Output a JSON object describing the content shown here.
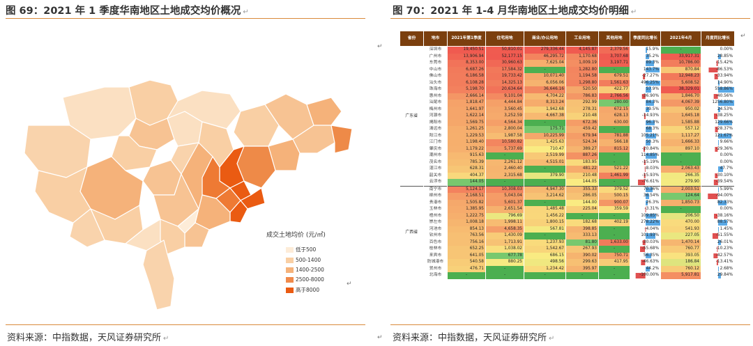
{
  "left": {
    "title": "图 69：2021 年 1 季度华南地区土地成交均价概况",
    "source": "资料来源：中指数据，天风证券研究所",
    "legend_title": "成交土地均价 (元/㎡)",
    "legend": [
      {
        "label": "低于500",
        "color": "#fdecd8"
      },
      {
        "label": "500-1400",
        "color": "#f9cfa4"
      },
      {
        "label": "1400-2500",
        "color": "#f5b27a"
      },
      {
        "label": "2500-8000",
        "color": "#f08a4b"
      },
      {
        "label": "高于8000",
        "color": "#ea5b12"
      }
    ]
  },
  "right": {
    "title": "图 70：2021 年 1-4 月华南地区土地成交均价明细",
    "source": "资料来源：中指数据，天风证券研究所",
    "headers": [
      "省份",
      "地市",
      "2021年第1季度",
      "住宅用地",
      "商业/办公用地",
      "工业用地",
      "其他用地",
      "季度同比增长",
      "2021年4月",
      "月度同比增长"
    ],
    "groups": [
      {
        "province": "广东省",
        "rows": [
          [
            "深圳市",
            "19,450.51",
            "50,810.01",
            "279,336.44",
            "4,145.87",
            "2,379.56",
            "15.9%",
            "-",
            "0.00%"
          ],
          [
            "广州市",
            "13,906.94",
            "52,177.15",
            "46,295.72",
            "1,170.68",
            "3,707.68",
            "35.2%",
            "33,917.31",
            "28.85%"
          ],
          [
            "东莞市",
            "8,353.00",
            "30,960.63",
            "7,625.04",
            "1,009.19",
            "3,197.71",
            "89.3%",
            "10,786.00",
            "-15.42%"
          ],
          [
            "中山市",
            "6,687.26",
            "17,584.32",
            "-",
            "1,282.80",
            "-",
            "143.7%",
            "870.84",
            "-86.53%"
          ],
          [
            "佛山市",
            "6,186.58",
            "19,733.42",
            "10,071.40",
            "1,194.58",
            "679.51",
            "-27.27%",
            "12,948.23",
            "-33.94%"
          ],
          [
            "汕头市",
            "6,108.28",
            "14,325.13",
            "6,056.06",
            "1,298.80",
            "1,561.63",
            "496.25%",
            "5,608.52",
            "14.90%"
          ],
          [
            "珠海市",
            "5,198.70",
            "20,634.64",
            "36,646.16",
            "520.50",
            "422.77",
            "57.9%",
            "38,329.01",
            "558.86%"
          ],
          [
            "惠州市",
            "2,666.14",
            "9,101.04",
            "4,704.22",
            "786.83",
            "2,766.56",
            "-36.90%",
            "1,846.70",
            "-40.56%"
          ],
          [
            "汕尾市",
            "1,818.47",
            "4,444.84",
            "8,313.24",
            "292.99",
            "280.00",
            "84.3%",
            "4,067.39",
            "1256.80%"
          ],
          [
            "梅州市",
            "1,641.97",
            "3,560.45",
            "1,942.68",
            "278.31",
            "672.15",
            "39.5%",
            "950.02",
            "24.53%"
          ],
          [
            "河源市",
            "1,622.14",
            "3,252.59",
            "4,667.38",
            "210.48",
            "628.13",
            "-14.93%",
            "1,645.18",
            "-38.25%"
          ],
          [
            "揭阳市",
            "1,569.75",
            "4,564.34",
            "-",
            "672.36",
            "630.00",
            "96.3%",
            "1,585.88",
            "129.66%"
          ],
          [
            "清远市",
            "1,261.25",
            "2,800.04",
            "175.71",
            "459.42",
            "-",
            "68.3%",
            "557.12",
            "-28.37%"
          ],
          [
            "阳江市",
            "1,229.53",
            "1,987.58",
            "10,225.99",
            "679.94",
            "781.88",
            "105.21%",
            "1,117.27",
            "121.67%"
          ],
          [
            "江门市",
            "1,198.40",
            "10,580.82",
            "1,425.63",
            "524.34",
            "566.18",
            "50.3%",
            "1,666.33",
            "9.66%"
          ],
          [
            "肇庆市",
            "1,179.22",
            "5,737.69",
            "710.47",
            "389.27",
            "815.12",
            "-20.84%",
            "897.10",
            "-29.36%"
          ],
          [
            "潮州市",
            "915.63",
            "-",
            "2,519.99",
            "887.26",
            "-",
            "114.85%",
            "-",
            "0.00%"
          ],
          [
            "茂名市",
            "785.39",
            "2,261.12",
            "4,515.01",
            "183.95",
            "-",
            "-15.19%",
            "-",
            "0.00%"
          ],
          [
            "湛江市",
            "628.31",
            "2,460.40",
            "-",
            "481.22",
            "521.22",
            "-8.03%",
            "2,063.43",
            "47.7%"
          ],
          [
            "韶关市",
            "404.37",
            "2,315.68",
            "379.90",
            "210.48",
            "1,461.99",
            "-15.93%",
            "266.35",
            "-30.10%"
          ],
          [
            "云浮市",
            "144.05",
            "-",
            "-",
            "144.05",
            "-",
            "-76.61%",
            "279.90",
            "-39.54%"
          ]
        ]
      },
      {
        "province": "广西省",
        "rows": [
          [
            "南宁市",
            "5,124.17",
            "10,308.03",
            "4,947.30",
            "355.33",
            "379.52",
            "70.36%",
            "2,003.51",
            "5.99%"
          ],
          [
            "柳州市",
            "2,168.51",
            "5,043.04",
            "3,214.62",
            "286.05",
            "500.15",
            "36.54%",
            "124.64",
            "-94.00%"
          ],
          [
            "贵港市",
            "1,505.82",
            "5,601.37",
            "-",
            "144.00",
            "900.07",
            "26.3%",
            "1,850.73",
            "82.33%"
          ],
          [
            "玉林市",
            "1,385.95",
            "2,651.54",
            "1,485.48",
            "225.04",
            "359.59",
            "-3.31%",
            "-",
            "0.00%"
          ],
          [
            "梧州市",
            "1,222.75",
            "796.69",
            "1,456.22",
            "-",
            "-",
            "109.85%",
            "206.50",
            "-38.16%"
          ],
          [
            "崇左市",
            "1,008.18",
            "1,998.11",
            "1,800.15",
            "182.68",
            "402.19",
            "278.22%",
            "470.00",
            "88.57%"
          ],
          [
            "河池市",
            "854.13",
            "4,658.35",
            "567.81",
            "398.85",
            "-",
            "-4.04%",
            "541.93",
            "1.45%"
          ],
          [
            "钦州市",
            "763.56",
            "1,430.09",
            "-",
            "333.13",
            "-",
            "101.93%",
            "227.05",
            "-51.55%"
          ],
          [
            "百色市",
            "756.16",
            "1,713.91",
            "1,237.93",
            "81.80",
            "1,633.00",
            "-30.03%",
            "1,470.14",
            "26.01%"
          ],
          [
            "桂林市",
            "652.25",
            "1,038.02",
            "1,542.67",
            "267.93",
            "-",
            "-55.68%",
            "760.77",
            "-10.23%"
          ],
          [
            "来宾市",
            "641.05",
            "677.78",
            "686.15",
            "390.02",
            "750.71",
            "56.35%",
            "393.05",
            "-42.57%"
          ],
          [
            "防城港市",
            "540.58",
            "880.25",
            "498.56",
            "299.63",
            "417.95",
            "-46.63%",
            "186.84",
            "-13.41%"
          ],
          [
            "贺州市",
            "476.71",
            "-",
            "1,234.42",
            "395.97",
            "-",
            "44.2%",
            "760.12",
            "2.68%"
          ],
          [
            "北海市",
            "-",
            "-",
            "-",
            "-",
            "-",
            "-100.00%",
            "5,917.81",
            "29.84%"
          ]
        ]
      }
    ]
  }
}
